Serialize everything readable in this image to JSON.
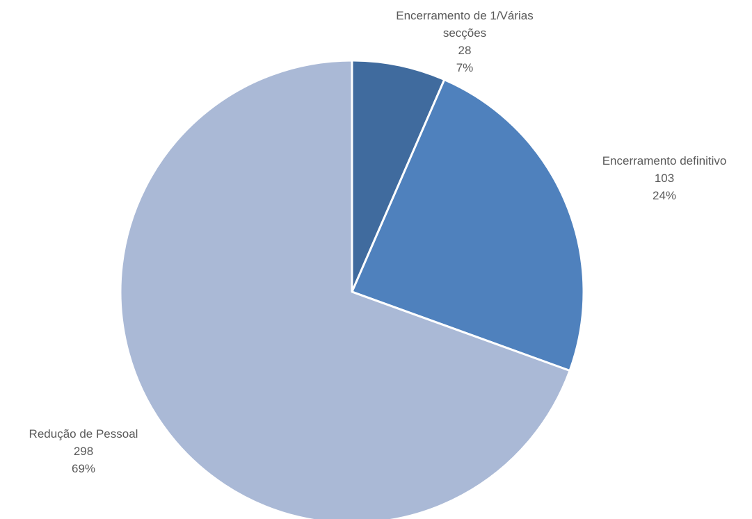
{
  "chart_data": {
    "type": "pie",
    "title": "",
    "slices": [
      {
        "label": "Encerramento de 1/Várias secções",
        "value": 28,
        "percent": "7%",
        "color": "#406B9E"
      },
      {
        "label": "Encerramento definitivo",
        "value": 103,
        "percent": "24%",
        "color": "#4F81BD"
      },
      {
        "label": "Redução de Pessoal",
        "value": 298,
        "percent": "69%",
        "color": "#AAB9D6"
      }
    ],
    "start_angle": "12 o'clock",
    "direction": "clockwise",
    "legend": "none",
    "data_labels": "outside"
  }
}
